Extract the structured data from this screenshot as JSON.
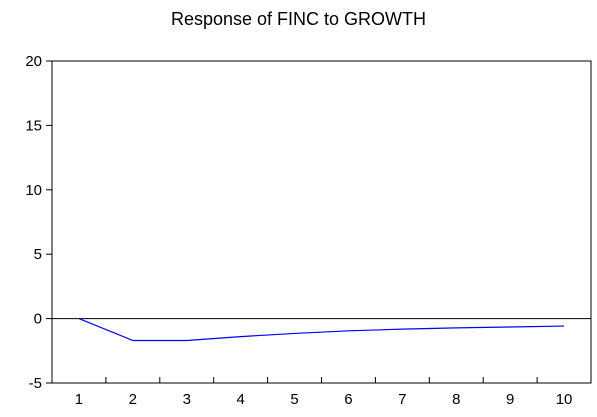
{
  "chart_data": {
    "type": "line",
    "title": "Response of FINC to GROWTH",
    "xlabel": "",
    "ylabel": "",
    "x": [
      1,
      2,
      3,
      4,
      5,
      6,
      7,
      8,
      9,
      10
    ],
    "series": [
      {
        "values": [
          0.0,
          -1.7,
          -1.7,
          -1.4,
          -1.15,
          -0.95,
          -0.82,
          -0.72,
          -0.65,
          -0.58
        ],
        "color": "#0000ff"
      }
    ],
    "xlim": [
      0.5,
      10.5
    ],
    "ylim": [
      -5,
      20
    ],
    "yticks": [
      20,
      15,
      10,
      5,
      0,
      -5
    ],
    "xticks": [
      1,
      2,
      3,
      4,
      5,
      6,
      7,
      8,
      9,
      10
    ],
    "zero_line": true,
    "grid": false,
    "legend": "none"
  }
}
